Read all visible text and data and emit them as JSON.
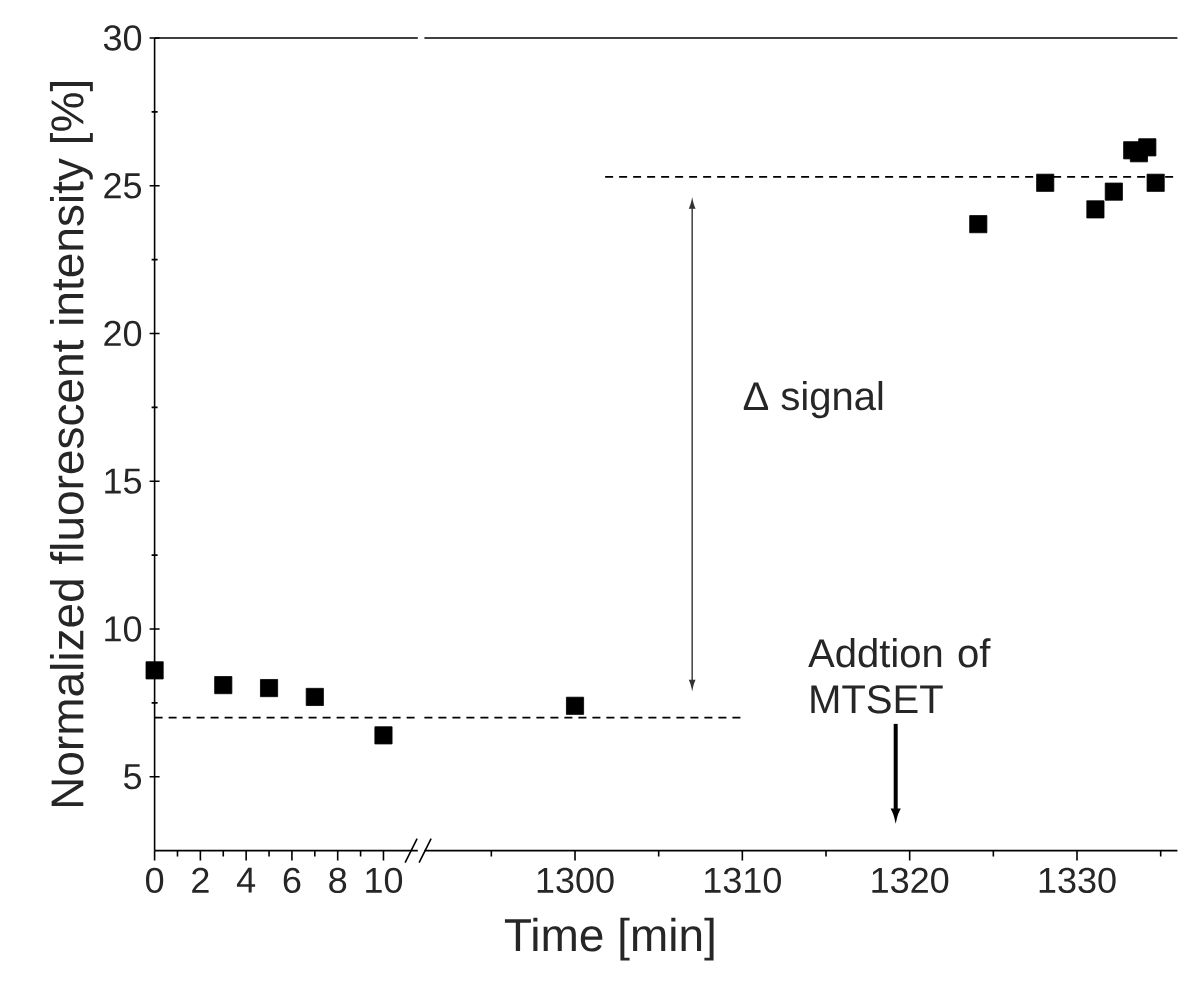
{
  "chart_data": [
    {
      "type": "scatter",
      "ylabel": "Normalized fluorescent intensity [%]",
      "xlim": [
        0,
        11.5
      ],
      "ylim": [
        2.5,
        30
      ],
      "marker": "square",
      "xticks": [
        0,
        {
          "value": 1,
          "label": null
        },
        2,
        {
          "value": 3,
          "label": null
        },
        4,
        {
          "value": 5,
          "label": null
        },
        6,
        {
          "value": 7,
          "label": null
        },
        8,
        {
          "value": 9,
          "label": null
        },
        10
      ],
      "yticks": [
        5,
        {
          "value": 7.5,
          "label": null
        },
        10,
        {
          "value": 12.5,
          "label": null
        },
        15,
        {
          "value": 17.5,
          "label": null
        },
        20,
        {
          "value": 22.5,
          "label": null
        },
        25,
        {
          "value": 27.5,
          "label": null
        },
        30
      ],
      "series": [
        {
          "color": "#000000",
          "x": [
            0,
            3,
            5,
            7,
            10
          ],
          "values": [
            8.6,
            8.1,
            8.0,
            7.7,
            6.4
          ]
        },
        {
          "type": "line",
          "color": "#000000",
          "marker": "none",
          "line_style": "dashed",
          "x": [
            0,
            11.5
          ],
          "values": [
            7.0,
            7.0
          ]
        }
      ]
    },
    {
      "type": "scatter",
      "xlabel": "Time [min]",
      "xlim": [
        1291,
        1336
      ],
      "ylim": [
        2.5,
        30
      ],
      "marker": "square",
      "tick_labels": "x",
      "xticks": [
        {
          "value": 1295,
          "label": null
        },
        1300,
        {
          "value": 1305,
          "label": null
        },
        1310,
        {
          "value": 1315,
          "label": null
        },
        1320,
        {
          "value": 1325,
          "label": null
        },
        1330,
        {
          "value": 1335,
          "label": null
        }
      ],
      "series": [
        {
          "color": "#000000",
          "x": [
            1300,
            1324.1,
            1328.1,
            1331.1,
            1332.2,
            1333.3,
            1333.7,
            1334.2,
            1334.7
          ],
          "values": [
            7.4,
            23.7,
            25.1,
            24.2,
            24.8,
            26.2,
            26.1,
            26.3,
            25.1
          ]
        },
        {
          "type": "line",
          "color": "#000000",
          "marker": "none",
          "line_style": "dashed",
          "x": [
            1291,
            1310
          ],
          "values": [
            7.0,
            7.0
          ]
        },
        {
          "type": "line",
          "color": "#000000",
          "marker": "none",
          "line_style": "dashed",
          "x": [
            1301.8,
            1336
          ],
          "values": [
            25.3,
            25.3
          ]
        }
      ],
      "annotations": [
        "Δ signal",
        "Addtion of MTSET"
      ]
    }
  ]
}
